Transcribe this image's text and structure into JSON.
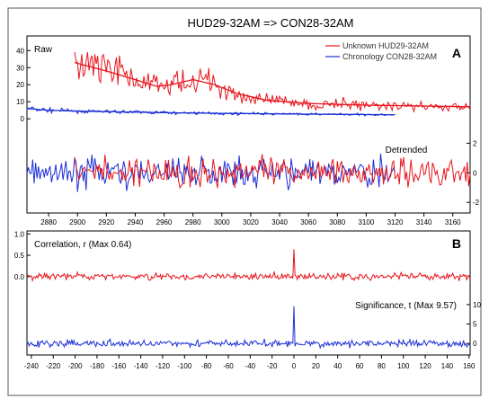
{
  "chart_data": [
    {
      "panel": "A",
      "type": "line",
      "title": "HUD29-32AM => CON28-32AM",
      "xlabel": "",
      "xlim": [
        2865,
        3172
      ],
      "x_ticks": [
        2880,
        2900,
        2920,
        2940,
        2960,
        2980,
        3000,
        3020,
        3040,
        3060,
        3080,
        3100,
        3120,
        3140,
        3160
      ],
      "raw": {
        "label": "Raw",
        "ylim": [
          -2,
          47
        ],
        "y_ticks": [
          0,
          10,
          20,
          30,
          40
        ],
        "series": [
          {
            "name": "Unknown HUD29-32AM",
            "color": "#e8141b",
            "x_range": [
              2898,
              3172
            ],
            "smooth_trend": true,
            "trend_points": [
              [
                2898,
                33
              ],
              [
                2920,
                28
              ],
              [
                2940,
                23
              ],
              [
                2955,
                19
              ],
              [
                2965,
                20
              ],
              [
                2980,
                23
              ],
              [
                2995,
                20
              ],
              [
                3010,
                15
              ],
              [
                3030,
                11
              ],
              [
                3060,
                9
              ],
              [
                3100,
                8
              ],
              [
                3140,
                7.5
              ],
              [
                3172,
                7
              ]
            ]
          },
          {
            "name": "Chronology CON28-32AM",
            "color": "#1b2fd6",
            "x_range": [
              2865,
              3120
            ],
            "smooth_trend": true,
            "trend_points": [
              [
                2865,
                6
              ],
              [
                2880,
                5
              ],
              [
                2900,
                4.5
              ],
              [
                2920,
                4.2
              ],
              [
                2960,
                3.6
              ],
              [
                3000,
                3.2
              ],
              [
                3050,
                2.8
              ],
              [
                3100,
                2.5
              ],
              [
                3120,
                2.4
              ]
            ]
          }
        ]
      },
      "detrended": {
        "label": "Detrended",
        "ylim": [
          -2.6,
          3.3
        ],
        "y_ticks": [
          -2,
          0,
          2
        ],
        "series": [
          {
            "name": "Unknown HUD29-32AM",
            "color": "#e8141b",
            "x_range": [
              2898,
              3172
            ]
          },
          {
            "name": "Chronology CON28-32AM",
            "color": "#1b2fd6",
            "x_range": [
              2865,
              3120
            ]
          }
        ]
      },
      "panel_label": "A"
    },
    {
      "panel": "B",
      "type": "line",
      "xlim": [
        -244,
        161
      ],
      "x_ticks": [
        -240,
        -220,
        -200,
        -180,
        -160,
        -140,
        -120,
        -100,
        -80,
        -60,
        -40,
        -20,
        0,
        20,
        40,
        60,
        80,
        100,
        120,
        140,
        160
      ],
      "correlation": {
        "label": "Correlation, r (Max 0.64)",
        "max": 0.64,
        "max_at": 0,
        "ylim": [
          -0.3,
          1.05
        ],
        "y_ticks": [
          0.0,
          0.5,
          1.0
        ],
        "y_tick_labels": [
          "0.0",
          "0.5",
          "1.0"
        ],
        "color": "#e8141b"
      },
      "significance": {
        "label": "Significance, t (Max 9.57)",
        "max": 9.57,
        "max_at": 0,
        "ylim": [
          -2.5,
          13
        ],
        "y_ticks": [
          0,
          5,
          10
        ],
        "color": "#1b2fd6"
      },
      "panel_label": "B"
    }
  ]
}
